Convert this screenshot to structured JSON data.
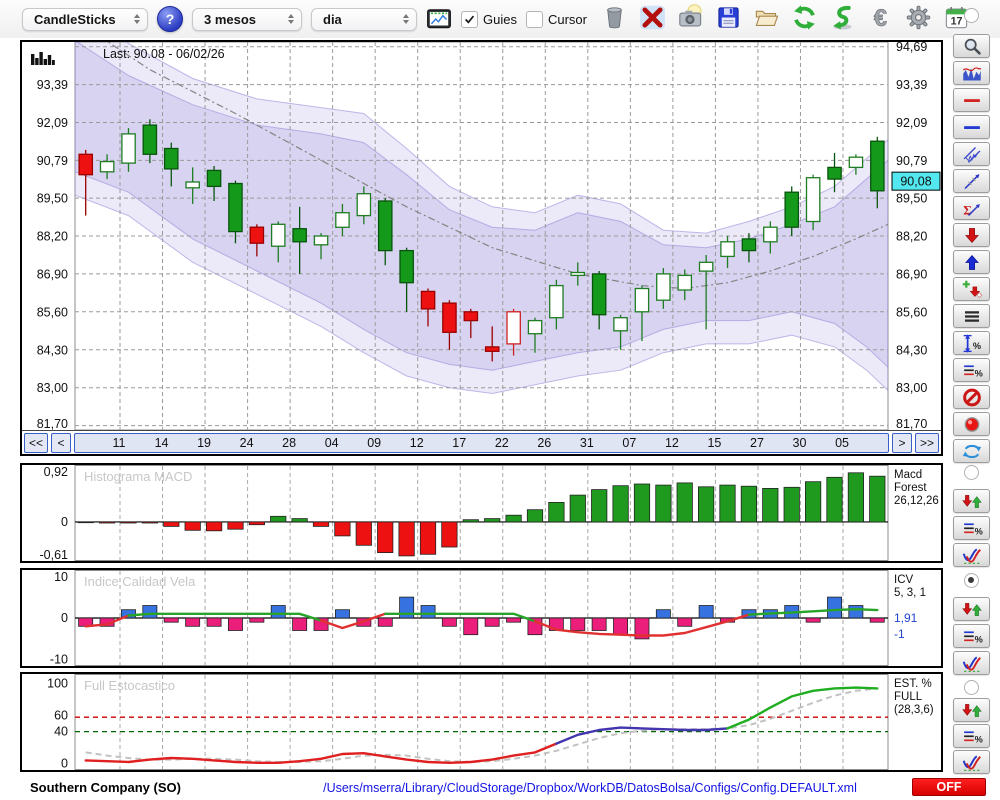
{
  "toolbar": {
    "chart_type": "CandleSticks",
    "help_label": "?",
    "period": "3 mesos",
    "interval": "dia",
    "guies": {
      "label": "Guies",
      "checked": true
    },
    "cursor": {
      "label": "Cursor",
      "checked": false
    },
    "calendar_day": "17",
    "icon_buttons": [
      "trash",
      "delete",
      "snapshot",
      "save",
      "open",
      "refresh",
      "download",
      "euro",
      "settings",
      "calendar"
    ]
  },
  "status_bar": {
    "symbol": "Southern Company (SO)",
    "config_path": "/Users/mserra/Library/CloudStorage/Dropbox/WorkDB/DatosBolsa/Configs/Config.DEFAULT.xml",
    "off_label": "OFF"
  },
  "sidebar": {
    "top_radio_selected": false,
    "tools": [
      "zoom",
      "indicators",
      "red-line",
      "blue-line",
      "channel",
      "trendline",
      "sigma-trend",
      "arrow-down",
      "arrow-up",
      "add-marker",
      "list-lines",
      "measure-vertical",
      "measure-levels",
      "disable",
      "record",
      "swap"
    ],
    "panel_groups": [
      {
        "name": "macd-group",
        "selected": false,
        "buttons": [
          "signal-arrows",
          "levels-percent",
          "curve-style"
        ]
      },
      {
        "name": "icv-group",
        "selected": true,
        "buttons": [
          "signal-arrows",
          "levels-percent",
          "curve-style"
        ]
      },
      {
        "name": "stoch-group",
        "selected": false,
        "buttons": [
          "signal-arrows",
          "levels-percent",
          "curve-style"
        ]
      }
    ]
  },
  "chart_data": [
    {
      "type": "candlestick",
      "title": "Last: 90.08 - 06/02/26",
      "last_price": 90.08,
      "last_price_label": "90,08",
      "ylim": [
        81.55,
        94.85
      ],
      "y_ticks_left": [
        {
          "label": "93,39",
          "value": 93.39
        },
        {
          "label": "92,09",
          "value": 92.09
        },
        {
          "label": "90,79",
          "value": 90.79
        },
        {
          "label": "89,50",
          "value": 89.5
        },
        {
          "label": "88,20",
          "value": 88.2
        },
        {
          "label": "86,90",
          "value": 86.9
        },
        {
          "label": "85,60",
          "value": 85.6
        },
        {
          "label": "84,30",
          "value": 84.3
        },
        {
          "label": "83,00",
          "value": 83.0
        },
        {
          "label": "81,70",
          "value": 81.7
        }
      ],
      "y_ticks_right": [
        {
          "label": "94,69",
          "value": 94.69
        },
        {
          "label": "93,39",
          "value": 93.39
        },
        {
          "label": "92,09",
          "value": 92.09
        },
        {
          "label": "90,79",
          "value": 90.79
        },
        {
          "label": "89,50",
          "value": 89.5
        },
        {
          "label": "88,20",
          "value": 88.2
        },
        {
          "label": "86,90",
          "value": 86.9
        },
        {
          "label": "85,60",
          "value": 85.6
        },
        {
          "label": "84,30",
          "value": 84.3
        },
        {
          "label": "83,00",
          "value": 83.0
        },
        {
          "label": "81,70",
          "value": 81.7
        }
      ],
      "x_labels": [
        "11",
        "14",
        "19",
        "24",
        "28",
        "04",
        "09",
        "12",
        "17",
        "22",
        "26",
        "31",
        "07",
        "12",
        "15",
        "27",
        "30",
        "05"
      ],
      "nav": {
        "first": "<<",
        "prev": "<",
        "next": ">",
        "last": ">>"
      },
      "candles": [
        [
          "r",
          90.3,
          91.0,
          88.9,
          91.15
        ],
        [
          "h",
          90.4,
          90.75,
          90.15,
          91.0
        ],
        [
          "h",
          90.7,
          91.7,
          90.4,
          91.9
        ],
        [
          "g",
          91.0,
          92.0,
          90.7,
          92.2
        ],
        [
          "g",
          90.5,
          91.2,
          89.9,
          91.4
        ],
        [
          "h",
          89.85,
          90.05,
          89.3,
          90.55
        ],
        [
          "g",
          89.9,
          90.45,
          89.4,
          90.6
        ],
        [
          "g",
          88.35,
          90.0,
          87.95,
          90.1
        ],
        [
          "r",
          87.95,
          88.5,
          87.5,
          88.6
        ],
        [
          "h",
          87.85,
          88.6,
          87.3,
          88.7
        ],
        [
          "g",
          88.0,
          88.45,
          86.9,
          89.2
        ],
        [
          "h",
          87.9,
          88.2,
          87.4,
          88.3
        ],
        [
          "h",
          88.5,
          89.0,
          88.2,
          89.3
        ],
        [
          "h",
          88.9,
          89.65,
          88.6,
          89.9
        ],
        [
          "g",
          87.7,
          89.4,
          87.2,
          89.5
        ],
        [
          "g",
          86.6,
          87.7,
          85.6,
          87.8
        ],
        [
          "r",
          85.7,
          86.3,
          85.1,
          86.4
        ],
        [
          "r",
          84.9,
          85.9,
          84.3,
          86.0
        ],
        [
          "r",
          85.3,
          85.6,
          84.7,
          85.7
        ],
        [
          "r",
          84.25,
          84.4,
          83.9,
          85.1
        ],
        [
          "hr",
          84.5,
          85.6,
          84.1,
          85.7
        ],
        [
          "h",
          84.85,
          85.3,
          84.2,
          85.4
        ],
        [
          "h",
          85.4,
          86.5,
          85.0,
          86.7
        ],
        [
          "h",
          86.85,
          86.95,
          86.5,
          87.3
        ],
        [
          "g",
          85.5,
          86.9,
          85.0,
          87.0
        ],
        [
          "h",
          84.95,
          85.4,
          84.3,
          85.5
        ],
        [
          "h",
          85.6,
          86.4,
          84.6,
          86.5
        ],
        [
          "h",
          86.0,
          86.9,
          85.7,
          87.1
        ],
        [
          "h",
          86.35,
          86.85,
          86.0,
          87.05
        ],
        [
          "h",
          87.0,
          87.3,
          85.0,
          87.55
        ],
        [
          "h",
          87.5,
          88.0,
          87.1,
          88.2
        ],
        [
          "g",
          87.7,
          88.1,
          87.3,
          88.3
        ],
        [
          "h",
          88.0,
          88.5,
          87.6,
          88.7
        ],
        [
          "g",
          88.5,
          89.7,
          88.2,
          89.9
        ],
        [
          "h",
          88.7,
          90.2,
          88.4,
          90.3
        ],
        [
          "g",
          90.15,
          90.55,
          89.7,
          91.05
        ],
        [
          "h",
          90.55,
          90.9,
          90.3,
          91.0
        ],
        [
          "g",
          89.75,
          91.45,
          89.15,
          91.6
        ]
      ],
      "band_outer": {
        "upper": [
          [
            -0.5,
            96.2
          ],
          [
            2,
            94.8
          ],
          [
            5,
            93.6
          ],
          [
            8,
            92.9
          ],
          [
            11,
            92.6
          ],
          [
            13,
            92.4
          ],
          [
            15,
            91.2
          ],
          [
            17,
            89.9
          ],
          [
            19,
            89.2
          ],
          [
            21,
            89.0
          ],
          [
            23,
            89.6
          ],
          [
            25,
            89.3
          ],
          [
            27,
            88.4
          ],
          [
            29,
            88.3
          ],
          [
            31,
            88.7
          ],
          [
            33,
            89.2
          ],
          [
            35,
            89.9
          ],
          [
            37.5,
            91.5
          ]
        ],
        "lower": [
          [
            -0.5,
            89.6
          ],
          [
            2,
            88.9
          ],
          [
            5,
            87.3
          ],
          [
            8,
            86.2
          ],
          [
            11,
            85.1
          ],
          [
            13,
            84.2
          ],
          [
            15,
            83.4
          ],
          [
            17,
            83.0
          ],
          [
            19,
            82.8
          ],
          [
            21,
            83.1
          ],
          [
            23,
            83.4
          ],
          [
            25,
            83.6
          ],
          [
            27,
            84.2
          ],
          [
            29,
            84.5
          ],
          [
            31,
            84.5
          ],
          [
            33,
            84.8
          ],
          [
            35,
            84.4
          ],
          [
            36.5,
            83.6
          ],
          [
            37.5,
            82.9
          ]
        ]
      },
      "band_inner": {
        "upper": [
          [
            -0.5,
            94.9
          ],
          [
            2,
            93.7
          ],
          [
            5,
            92.7
          ],
          [
            8,
            92.0
          ],
          [
            11,
            91.7
          ],
          [
            13,
            91.4
          ],
          [
            15,
            90.3
          ],
          [
            17,
            89.1
          ],
          [
            19,
            88.5
          ],
          [
            21,
            88.4
          ],
          [
            23,
            89.0
          ],
          [
            25,
            88.7
          ],
          [
            27,
            87.9
          ],
          [
            29,
            87.8
          ],
          [
            31,
            88.1
          ],
          [
            33,
            88.6
          ],
          [
            35,
            89.2
          ],
          [
            37.5,
            90.8
          ]
        ],
        "lower": [
          [
            -0.5,
            90.4
          ],
          [
            2,
            89.7
          ],
          [
            5,
            88.1
          ],
          [
            8,
            87.0
          ],
          [
            11,
            85.9
          ],
          [
            13,
            85.0
          ],
          [
            15,
            84.2
          ],
          [
            17,
            83.8
          ],
          [
            19,
            83.6
          ],
          [
            21,
            83.9
          ],
          [
            23,
            84.2
          ],
          [
            25,
            84.4
          ],
          [
            27,
            85.0
          ],
          [
            29,
            85.3
          ],
          [
            31,
            85.3
          ],
          [
            33,
            85.6
          ],
          [
            35,
            85.2
          ],
          [
            36.5,
            84.4
          ],
          [
            37.5,
            83.7
          ]
        ]
      },
      "ma_line": [
        [
          -0.5,
          95.6
        ],
        [
          3,
          93.9
        ],
        [
          7,
          92.4
        ],
        [
          11,
          90.8
        ],
        [
          15,
          89.2
        ],
        [
          19,
          87.8
        ],
        [
          23,
          86.9
        ],
        [
          26,
          86.5
        ],
        [
          28,
          86.4
        ],
        [
          30,
          86.6
        ],
        [
          32,
          87.0
        ],
        [
          34,
          87.5
        ],
        [
          36,
          88.1
        ],
        [
          37.5,
          88.6
        ]
      ],
      "colors": {
        "up_fill": "#15991b",
        "up_hollow": "#1e7d22",
        "down_fill": "#ee1111",
        "down_hollow": "#cc2222",
        "band": "#9383d7",
        "last_badge": "#53e8ef"
      }
    },
    {
      "type": "bar",
      "name": "macd-histogram",
      "watermark": "Histograma MACD",
      "right_label_lines": [
        "Macd",
        "Forest",
        "26,12,26"
      ],
      "ylim": [
        -0.7,
        1.02
      ],
      "y_ticks": [
        {
          "label": "0,92",
          "value": 0.92
        },
        {
          "label": "0",
          "value": 0
        },
        {
          "label": "-0,61",
          "value": -0.61
        }
      ],
      "values": [
        -0.01,
        -0.02,
        -0.02,
        -0.02,
        -0.08,
        -0.15,
        -0.16,
        -0.13,
        -0.05,
        0.1,
        0.06,
        -0.08,
        -0.25,
        -0.42,
        -0.55,
        -0.61,
        -0.58,
        -0.45,
        0.04,
        0.06,
        0.12,
        0.22,
        0.35,
        0.48,
        0.58,
        0.65,
        0.68,
        0.66,
        0.7,
        0.63,
        0.66,
        0.64,
        0.6,
        0.62,
        0.72,
        0.8,
        0.88,
        0.82
      ],
      "colors": {
        "pos": "#1f9a1f",
        "neg": "#ee1111"
      }
    },
    {
      "type": "bar+line",
      "name": "icv",
      "watermark": "Indice Calidad Vela",
      "right_label_lines": [
        "ICV",
        "5, 3, 1"
      ],
      "right_values": [
        "1,91",
        "-1"
      ],
      "ylim": [
        -11.5,
        11.5
      ],
      "y_ticks": [
        {
          "label": "10",
          "value": 10
        },
        {
          "label": "0",
          "value": 0
        },
        {
          "label": "-10",
          "value": -10
        }
      ],
      "bars": [
        -2,
        -2,
        2,
        3,
        -1,
        -2,
        -2,
        -3,
        -1,
        3,
        -3,
        -3,
        2,
        -2,
        -2,
        5,
        3,
        -2,
        -4,
        -2,
        -1,
        -4,
        -3,
        -3,
        -3,
        -4,
        -5,
        2,
        -2,
        3,
        -1,
        2,
        2,
        3,
        -1,
        5,
        3,
        -1
      ],
      "line": [
        -2,
        -1.5,
        0.6,
        1,
        1,
        1,
        1,
        1,
        1,
        1,
        1,
        -0.6,
        -2.4,
        -0.8,
        1,
        1,
        1,
        1,
        1,
        1,
        1,
        -0.8,
        -2.8,
        -3.4,
        -3.8,
        -4,
        -4.2,
        -4.2,
        -3.6,
        -2.2,
        -0.8,
        0.8,
        1.1,
        1.3,
        1.6,
        1.9,
        2.1,
        1.9
      ],
      "line_segments": [
        [
          0,
          2,
          "r"
        ],
        [
          2,
          11,
          "g"
        ],
        [
          11,
          14,
          "r"
        ],
        [
          14,
          21,
          "g"
        ],
        [
          21,
          31,
          "r"
        ],
        [
          31,
          37,
          "g"
        ]
      ],
      "colors": {
        "pos": "#3672e0",
        "neg": "#ec1e7b",
        "line_pos": "#28a428",
        "line_neg": "#e03030",
        "value_text": "#2244cc"
      }
    },
    {
      "type": "line",
      "name": "full-stochastic",
      "watermark": "Full Estocastico",
      "right_label_lines": [
        "EST. %",
        "FULL",
        "(28,3,6)"
      ],
      "ylim": [
        -8,
        112
      ],
      "y_ticks": [
        {
          "label": "100",
          "value": 100
        },
        {
          "label": "60",
          "value": 60
        },
        {
          "label": "40",
          "value": 40
        },
        {
          "label": "0",
          "value": 0
        }
      ],
      "thresholds": [
        {
          "value": 58,
          "color": "#cc0000"
        },
        {
          "value": 40,
          "color": "#006600"
        }
      ],
      "k_values": [
        4,
        3,
        2,
        5,
        7,
        6,
        4,
        2,
        1,
        1,
        3,
        6,
        12,
        13,
        9,
        5,
        2,
        1,
        2,
        5,
        10,
        14,
        25,
        36,
        42,
        45,
        44,
        43,
        42,
        42,
        44,
        55,
        70,
        84,
        91,
        94,
        95,
        94
      ],
      "k_segments": [
        [
          0,
          22,
          "#e02020"
        ],
        [
          22,
          30,
          "#4336ae"
        ],
        [
          30,
          37,
          "#1fae1f"
        ]
      ],
      "d_values": [
        14,
        10,
        7,
        5,
        5,
        6,
        6,
        5,
        3,
        2,
        2,
        3,
        6,
        10,
        11,
        10,
        6,
        3,
        2,
        3,
        6,
        10,
        16,
        24,
        32,
        38,
        41,
        43,
        43,
        43,
        44,
        48,
        56,
        66,
        76,
        85,
        91,
        94
      ]
    }
  ]
}
